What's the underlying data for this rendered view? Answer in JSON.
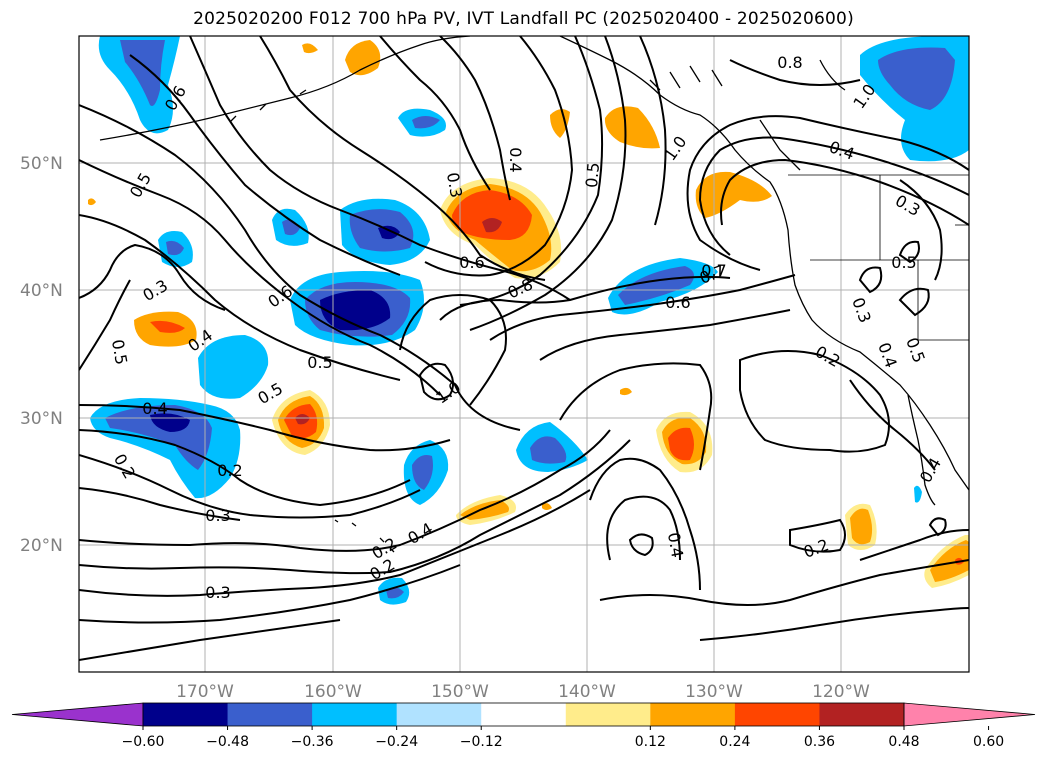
{
  "title": "2025020200 F012 700 hPa PV, IVT Landfall PC (2025020400 - 2025020600)",
  "lat_ticks": [
    "50°N",
    "40°N",
    "30°N",
    "20°N"
  ],
  "lon_ticks": [
    "170°W",
    "160°W",
    "150°W",
    "140°W",
    "130°W",
    "120°W"
  ],
  "colorbar": {
    "tick_labels": [
      "−0.60",
      "−0.48",
      "−0.36",
      "−0.24",
      "−0.12",
      "0.12",
      "0.24",
      "0.36",
      "0.48",
      "0.60"
    ],
    "colors": [
      "#9a32cd",
      "#00008b",
      "#3a5fcd",
      "#00bfff",
      "#b0e2ff",
      "#ffffff",
      "#ffec8b",
      "#ffa500",
      "#ff4500",
      "#b22222",
      "#ff82ab"
    ]
  },
  "contour_labels": [
    "0.6",
    "0.5",
    "0.3",
    "0.5",
    "0.6",
    "0.4",
    "0.5",
    "0.5",
    "0.4",
    "0.2",
    "0.2",
    "0.3",
    "0.3",
    "0.2",
    "0.4",
    "0.2",
    "0.4",
    "0.3",
    "0.8",
    "1.0",
    "0.5",
    "0.7",
    "0.8",
    "1.0",
    "1.0",
    "0.4",
    "0.3",
    "0.5",
    "0.7",
    "0.6",
    "0.3",
    "0.4",
    "0.5",
    "0.2",
    "0.4",
    "0.2",
    "0.4",
    "0.6"
  ],
  "shading_colors": {
    "neg_1": "#b0e2ff",
    "neg_2": "#00bfff",
    "neg_3": "#3a5fcd",
    "neg_4": "#00008b",
    "pos_1": "#ffec8b",
    "pos_2": "#ffa500",
    "pos_3": "#ff4500",
    "pos_4": "#b22222"
  }
}
